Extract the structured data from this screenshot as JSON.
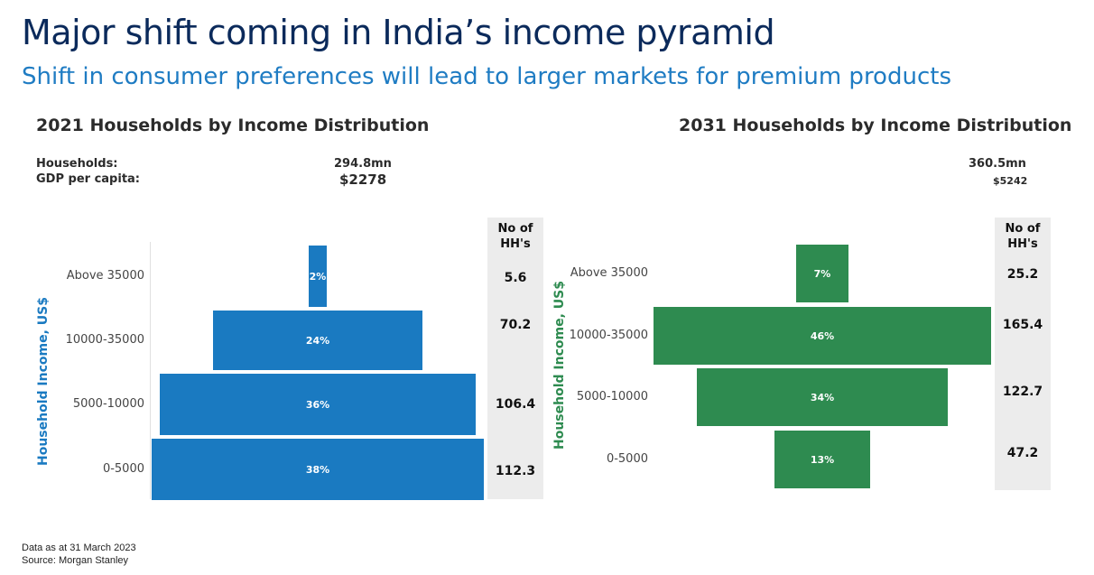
{
  "page": {
    "title": "Major shift coming in India’s income pyramid",
    "subtitle": "Shift in consumer preferences will lead to larger markets for premium products",
    "footer_date": "Data as at 31 March 2023",
    "footer_source": "Source: Morgan Stanley"
  },
  "colors": {
    "title": "#0b2a5b",
    "subtitle": "#1f7cc3",
    "bar_2021": "#1a7ac1",
    "bar_2031": "#2e8b50"
  },
  "chart_data": [
    {
      "type": "bar",
      "orientation": "horizontal-pyramid",
      "title": "2021 Households by Income Distribution",
      "households_label": "Households:",
      "households_value": "294.8mn",
      "gdp_label": "GDP per capita:",
      "gdp_value": "$2278",
      "ylabel": "Household Income, US$",
      "hh_header": "No of HH's",
      "categories": [
        "Above 35000",
        "10000-35000",
        "5000-10000",
        "0-5000"
      ],
      "values": [
        2,
        24,
        36,
        38
      ],
      "value_labels": [
        "2%",
        "24%",
        "36%",
        "38%"
      ],
      "households": [
        "5.6",
        "70.2",
        "106.4",
        "112.3"
      ],
      "color": "#1a7ac1"
    },
    {
      "type": "bar",
      "orientation": "horizontal-pyramid",
      "title": "2031 Households by Income Distribution",
      "households_value": "360.5mn",
      "gdp_value": "$5242",
      "ylabel": "Household Income, US$",
      "hh_header": "No of HH's",
      "categories": [
        "Above 35000",
        "10000-35000",
        "5000-10000",
        "0-5000"
      ],
      "values": [
        7,
        46,
        34,
        13
      ],
      "value_labels": [
        "7%",
        "46%",
        "34%",
        "13%"
      ],
      "households": [
        "25.2",
        "165.4",
        "122.7",
        "47.2"
      ],
      "color": "#2e8b50"
    }
  ]
}
